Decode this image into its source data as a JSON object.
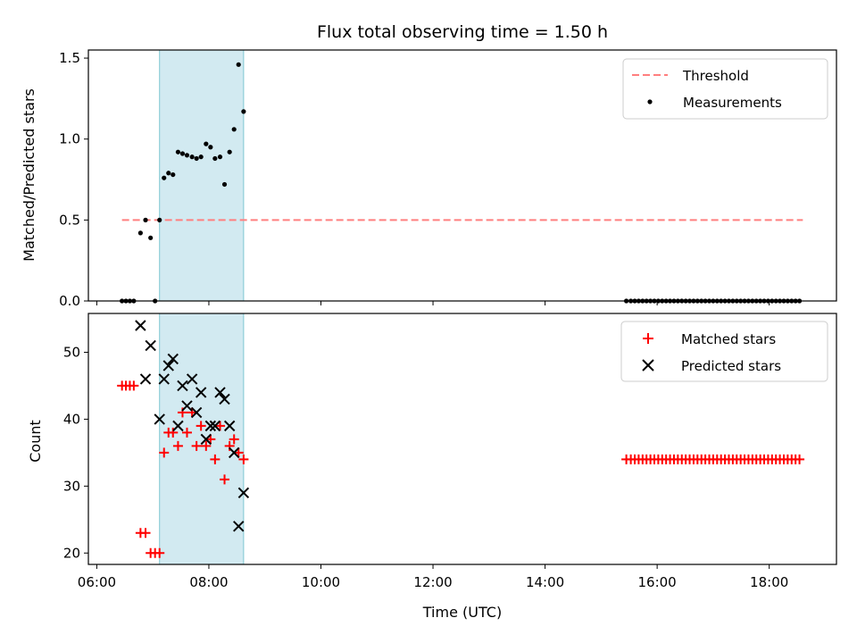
{
  "title": "Flux total observing time = 1.50 h",
  "xlabel": "Time (UTC)",
  "colors": {
    "threshold": "#ff7f7f",
    "measurements": "#000000",
    "matched": "#ff0000",
    "predicted": "#000000",
    "span": "#add8e6"
  },
  "chart_data": [
    {
      "type": "scatter",
      "ylabel": "Matched/Predicted stars",
      "x_unit": "hours UTC",
      "xlim": [
        5.85,
        19.2
      ],
      "ylim": [
        0,
        1.55
      ],
      "yticks": [
        "0.0",
        "0.5",
        "1.0",
        "1.5"
      ],
      "shaded_span": [
        7.12,
        8.62
      ],
      "legend": {
        "position": "top-right",
        "entries": [
          "Threshold",
          "Measurements"
        ]
      },
      "threshold": {
        "name": "Threshold",
        "value": 0.5,
        "x_range": [
          6.45,
          18.6
        ]
      },
      "series": [
        {
          "name": "Measurements",
          "x": [
            6.45,
            6.52,
            6.59,
            6.66,
            6.78,
            6.87,
            6.96,
            7.04,
            7.12,
            7.2,
            7.28,
            7.36,
            7.45,
            7.53,
            7.61,
            7.7,
            7.78,
            7.86,
            7.95,
            8.03,
            8.11,
            8.2,
            8.28,
            8.37,
            8.45,
            8.53,
            8.62,
            15.45,
            15.53,
            15.6,
            15.67,
            15.74,
            15.81,
            15.88,
            15.95,
            16.02,
            16.09,
            16.16,
            16.23,
            16.3,
            16.37,
            16.44,
            16.51,
            16.58,
            16.65,
            16.72,
            16.79,
            16.86,
            16.93,
            17.0,
            17.07,
            17.14,
            17.21,
            17.28,
            17.35,
            17.42,
            17.49,
            17.56,
            17.63,
            17.7,
            17.77,
            17.84,
            17.91,
            17.98,
            18.05,
            18.12,
            18.19,
            18.26,
            18.33,
            18.4,
            18.47,
            18.54
          ],
          "y": [
            0,
            0,
            0,
            0,
            0.42,
            0.5,
            0.39,
            0,
            0.5,
            0.76,
            0.79,
            0.78,
            0.92,
            0.91,
            0.9,
            0.89,
            0.88,
            0.89,
            0.97,
            0.95,
            0.88,
            0.89,
            0.72,
            0.92,
            1.06,
            1.46,
            1.17,
            0,
            0,
            0,
            0,
            0,
            0,
            0,
            0,
            0,
            0,
            0,
            0,
            0,
            0,
            0,
            0,
            0,
            0,
            0,
            0,
            0,
            0,
            0,
            0,
            0,
            0,
            0,
            0,
            0,
            0,
            0,
            0,
            0,
            0,
            0,
            0,
            0,
            0,
            0,
            0,
            0,
            0,
            0,
            0,
            0
          ]
        }
      ]
    },
    {
      "type": "scatter",
      "ylabel": "Count",
      "xlabel": "Time (UTC)",
      "x_unit": "hours UTC",
      "xlim": [
        5.85,
        19.2
      ],
      "ylim": [
        18.3,
        55.8
      ],
      "yticks": [
        "20",
        "30",
        "40",
        "50"
      ],
      "xticks": [
        "06:00",
        "08:00",
        "10:00",
        "12:00",
        "14:00",
        "16:00",
        "18:00"
      ],
      "shaded_span": [
        7.12,
        8.62
      ],
      "legend": {
        "position": "top-right",
        "entries": [
          "Matched stars",
          "Predicted stars"
        ]
      },
      "series": [
        {
          "name": "Matched stars",
          "marker": "+",
          "x": [
            6.45,
            6.52,
            6.59,
            6.66,
            6.78,
            6.87,
            6.96,
            7.04,
            7.12,
            7.2,
            7.28,
            7.36,
            7.45,
            7.53,
            7.61,
            7.7,
            7.78,
            7.86,
            7.95,
            8.03,
            8.11,
            8.2,
            8.28,
            8.37,
            8.45,
            8.53,
            8.62,
            15.45,
            15.53,
            15.6,
            15.67,
            15.74,
            15.81,
            15.88,
            15.95,
            16.02,
            16.09,
            16.16,
            16.23,
            16.3,
            16.37,
            16.44,
            16.51,
            16.58,
            16.65,
            16.72,
            16.79,
            16.86,
            16.93,
            17.0,
            17.07,
            17.14,
            17.21,
            17.28,
            17.35,
            17.42,
            17.49,
            17.56,
            17.63,
            17.7,
            17.77,
            17.84,
            17.91,
            17.98,
            18.05,
            18.12,
            18.19,
            18.26,
            18.33,
            18.4,
            18.47,
            18.54
          ],
          "y": [
            45,
            45,
            45,
            45,
            23,
            23,
            20,
            20,
            20,
            35,
            38,
            38,
            36,
            41,
            38,
            41,
            36,
            39,
            36,
            37,
            34,
            39,
            31,
            36,
            37,
            35,
            34,
            34,
            34,
            34,
            34,
            34,
            34,
            34,
            34,
            34,
            34,
            34,
            34,
            34,
            34,
            34,
            34,
            34,
            34,
            34,
            34,
            34,
            34,
            34,
            34,
            34,
            34,
            34,
            34,
            34,
            34,
            34,
            34,
            34,
            34,
            34,
            34,
            34,
            34,
            34,
            34,
            34,
            34,
            34,
            34,
            34
          ]
        },
        {
          "name": "Predicted stars",
          "marker": "x",
          "x": [
            6.78,
            6.87,
            6.96,
            7.12,
            7.2,
            7.28,
            7.36,
            7.45,
            7.53,
            7.61,
            7.7,
            7.78,
            7.86,
            7.95,
            8.03,
            8.11,
            8.2,
            8.28,
            8.37,
            8.45,
            8.53,
            8.62
          ],
          "y": [
            54,
            46,
            51,
            40,
            46,
            48,
            49,
            39,
            45,
            42,
            46,
            41,
            44,
            37,
            39,
            39,
            44,
            43,
            39,
            35,
            24,
            29
          ]
        }
      ]
    }
  ]
}
